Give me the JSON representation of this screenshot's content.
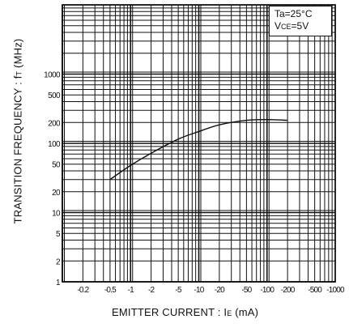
{
  "chart_data": {
    "type": "line",
    "xscale": "log",
    "yscale": "log",
    "xlabel": "EMITTER CURRENT : I",
    "xlabel_sub": "E",
    "xlabel_unit": "(mA)",
    "ylabel": "TRANSITION FREQUENCY : f",
    "ylabel_sub": "T",
    "ylabel_unit": "(MHz)",
    "x_ticks": [
      {
        "value": 0.2,
        "label": "-0.2"
      },
      {
        "value": 0.5,
        "label": "-0.5"
      },
      {
        "value": 1,
        "label": "-1"
      },
      {
        "value": 2,
        "label": "-2"
      },
      {
        "value": 5,
        "label": "-5"
      },
      {
        "value": 10,
        "label": "-10"
      },
      {
        "value": 20,
        "label": "-20"
      },
      {
        "value": 50,
        "label": "-50"
      },
      {
        "value": 100,
        "label": "-100"
      },
      {
        "value": 200,
        "label": "-200"
      },
      {
        "value": 500,
        "label": "-500"
      },
      {
        "value": 1000,
        "label": "-1000"
      }
    ],
    "y_ticks": [
      {
        "value": 1,
        "label": "1"
      },
      {
        "value": 2,
        "label": "2"
      },
      {
        "value": 5,
        "label": "5"
      },
      {
        "value": 10,
        "label": "10"
      },
      {
        "value": 20,
        "label": "20"
      },
      {
        "value": 50,
        "label": "50"
      },
      {
        "value": 100,
        "label": "100"
      },
      {
        "value": 200,
        "label": "200"
      },
      {
        "value": 500,
        "label": "500"
      },
      {
        "value": 1000,
        "label": "1000"
      }
    ],
    "xlim": [
      0.1,
      1000
    ],
    "ylim": [
      1,
      10000
    ],
    "grid": true,
    "conditions": [
      "Ta=25°C",
      "VCE=5V"
    ],
    "series": [
      {
        "x": [
          0.5,
          1,
          2,
          5,
          10,
          20,
          50,
          100,
          200
        ],
        "y": [
          30,
          48,
          72,
          115,
          148,
          185,
          215,
          220,
          215
        ]
      }
    ]
  },
  "labels": {
    "ylabel_main": "TRANSITION FREQUENCY : f",
    "ylabel_sub": "T",
    "ylabel_unit": " (MHz)",
    "xlabel_main": "EMITTER CURRENT : I",
    "xlabel_sub": "E",
    "xlabel_unit": " (mA)",
    "cond_line1": "Ta=25°C",
    "cond_line2_main": "V",
    "cond_line2_sub": "CE",
    "cond_line2_rest": "=5V"
  }
}
